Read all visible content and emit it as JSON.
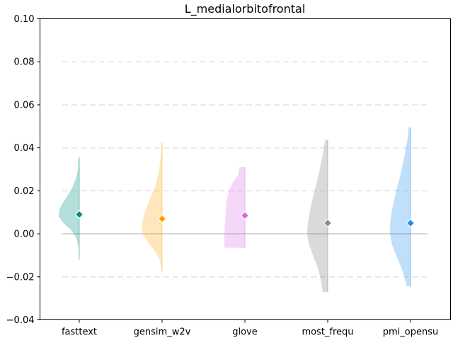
{
  "chart_data": {
    "type": "violin",
    "title": "L_medialorbitofrontal",
    "xlabel": "",
    "ylabel": "",
    "ylim": [
      -0.04,
      0.1
    ],
    "yticks": [
      -0.04,
      -0.02,
      0.0,
      0.02,
      0.04,
      0.06,
      0.08,
      0.1
    ],
    "ytick_labels": [
      "−0.04",
      "−0.02",
      "0.00",
      "0.02",
      "0.04",
      "0.06",
      "0.08",
      "0.10"
    ],
    "grid": true,
    "reference_line": 0.0,
    "categories": [
      "fasttext",
      "gensim_w2v",
      "glove",
      "most_frequ",
      "pmi_opensu"
    ],
    "series": [
      {
        "name": "fasttext",
        "color": "#1a9a8c",
        "marker_color": "#0a8a8a",
        "mean": 0.009,
        "min": -0.012,
        "max": 0.0355,
        "profile": [
          [
            -0.012,
            0.0
          ],
          [
            -0.006,
            0.03
          ],
          [
            -0.002,
            0.14
          ],
          [
            0.002,
            0.42
          ],
          [
            0.005,
            0.78
          ],
          [
            0.008,
            1.0
          ],
          [
            0.011,
            0.98
          ],
          [
            0.014,
            0.83
          ],
          [
            0.018,
            0.55
          ],
          [
            0.022,
            0.32
          ],
          [
            0.026,
            0.16
          ],
          [
            0.03,
            0.06
          ],
          [
            0.0355,
            0.03
          ]
        ]
      },
      {
        "name": "gensim_w2v",
        "color": "#ffb232",
        "marker_color": "#ff9f00",
        "mean": 0.007,
        "min": -0.0175,
        "max": 0.0425,
        "profile": [
          [
            -0.0175,
            0.0
          ],
          [
            -0.012,
            0.12
          ],
          [
            -0.008,
            0.35
          ],
          [
            -0.004,
            0.7
          ],
          [
            0.0,
            0.94
          ],
          [
            0.004,
            1.0
          ],
          [
            0.008,
            0.9
          ],
          [
            0.012,
            0.76
          ],
          [
            0.016,
            0.6
          ],
          [
            0.02,
            0.42
          ],
          [
            0.024,
            0.27
          ],
          [
            0.03,
            0.14
          ],
          [
            0.036,
            0.07
          ],
          [
            0.0425,
            0.02
          ]
        ]
      },
      {
        "name": "glove",
        "color": "#e183e8",
        "marker_color": "#d26ad8",
        "mean": 0.0085,
        "min": -0.0065,
        "max": 0.031,
        "profile": [
          [
            -0.0065,
            1.0
          ],
          [
            -0.004,
            1.0
          ],
          [
            0.0,
            1.0
          ],
          [
            0.004,
            0.98
          ],
          [
            0.008,
            0.95
          ],
          [
            0.012,
            0.92
          ],
          [
            0.016,
            0.88
          ],
          [
            0.02,
            0.78
          ],
          [
            0.024,
            0.58
          ],
          [
            0.027,
            0.35
          ],
          [
            0.031,
            0.25
          ]
        ]
      },
      {
        "name": "most_frequ",
        "color": "#8c8c8c",
        "marker_color": "#8a8a8a",
        "mean": 0.005,
        "min": -0.027,
        "max": 0.0435,
        "profile": [
          [
            -0.027,
            0.25
          ],
          [
            -0.022,
            0.32
          ],
          [
            -0.016,
            0.48
          ],
          [
            -0.01,
            0.72
          ],
          [
            -0.004,
            0.94
          ],
          [
            0.0,
            1.0
          ],
          [
            0.005,
            0.97
          ],
          [
            0.01,
            0.88
          ],
          [
            0.016,
            0.74
          ],
          [
            0.022,
            0.58
          ],
          [
            0.028,
            0.43
          ],
          [
            0.034,
            0.3
          ],
          [
            0.04,
            0.18
          ],
          [
            0.0435,
            0.14
          ]
        ]
      },
      {
        "name": "pmi_opensu",
        "color": "#3a9cf2",
        "marker_color": "#1a8ef5",
        "mean": 0.005,
        "min": -0.0245,
        "max": 0.0495,
        "profile": [
          [
            -0.0245,
            0.18
          ],
          [
            -0.02,
            0.3
          ],
          [
            -0.015,
            0.48
          ],
          [
            -0.01,
            0.7
          ],
          [
            -0.005,
            0.9
          ],
          [
            0.0,
            1.0
          ],
          [
            0.005,
            0.99
          ],
          [
            0.01,
            0.92
          ],
          [
            0.016,
            0.8
          ],
          [
            0.022,
            0.64
          ],
          [
            0.028,
            0.48
          ],
          [
            0.034,
            0.34
          ],
          [
            0.04,
            0.22
          ],
          [
            0.046,
            0.12
          ],
          [
            0.0495,
            0.09
          ]
        ]
      }
    ]
  }
}
